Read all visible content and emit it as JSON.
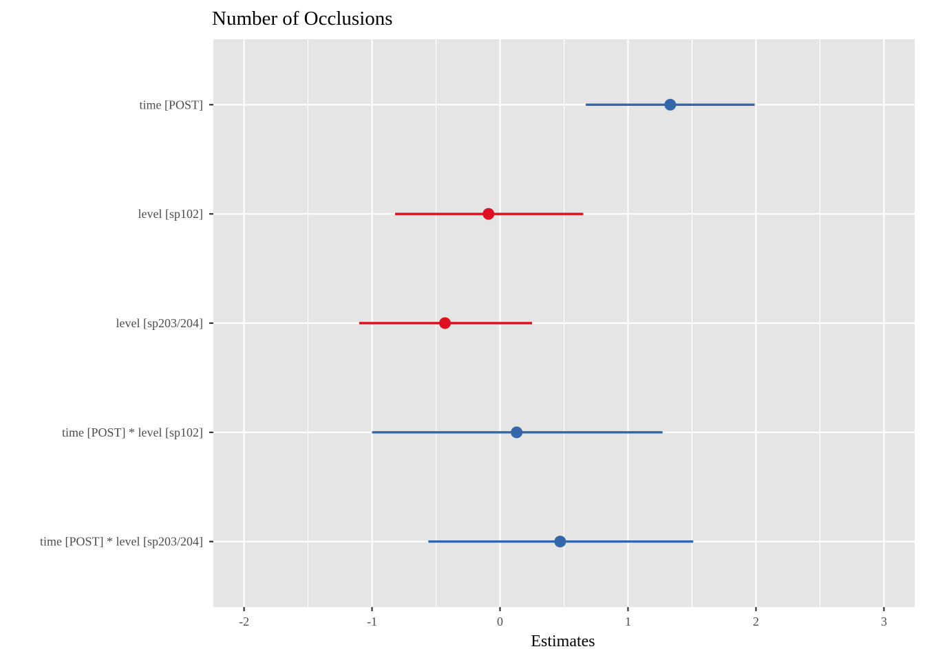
{
  "chart_data": {
    "type": "forest",
    "title": "Number of Occlusions",
    "xlabel": "Estimates",
    "ylabel": "",
    "xlim": [
      -2.24,
      3.24
    ],
    "x_ticks": [
      "-2",
      "-1",
      "0",
      "1",
      "2",
      "3"
    ],
    "x_tick_values": [
      -2,
      -1,
      0,
      1,
      2,
      3
    ],
    "grid": true,
    "panel_background": "#e5e5e5",
    "grid_color": "#ffffff",
    "colors": {
      "positive": "#3366aa",
      "negative": "#dd0f20"
    },
    "terms": [
      {
        "label": "time [POST]",
        "estimate": 1.33,
        "low": 0.67,
        "high": 1.99,
        "sign": "positive"
      },
      {
        "label": "level [sp102]",
        "estimate": -0.09,
        "low": -0.82,
        "high": 0.65,
        "sign": "negative"
      },
      {
        "label": "level [sp203/204]",
        "estimate": -0.43,
        "low": -1.1,
        "high": 0.25,
        "sign": "negative"
      },
      {
        "label": "time [POST] * level [sp102]",
        "estimate": 0.13,
        "low": -1.0,
        "high": 1.27,
        "sign": "positive"
      },
      {
        "label": "time [POST] * level [sp203/204]",
        "estimate": 0.47,
        "low": -0.56,
        "high": 1.51,
        "sign": "positive"
      }
    ]
  }
}
